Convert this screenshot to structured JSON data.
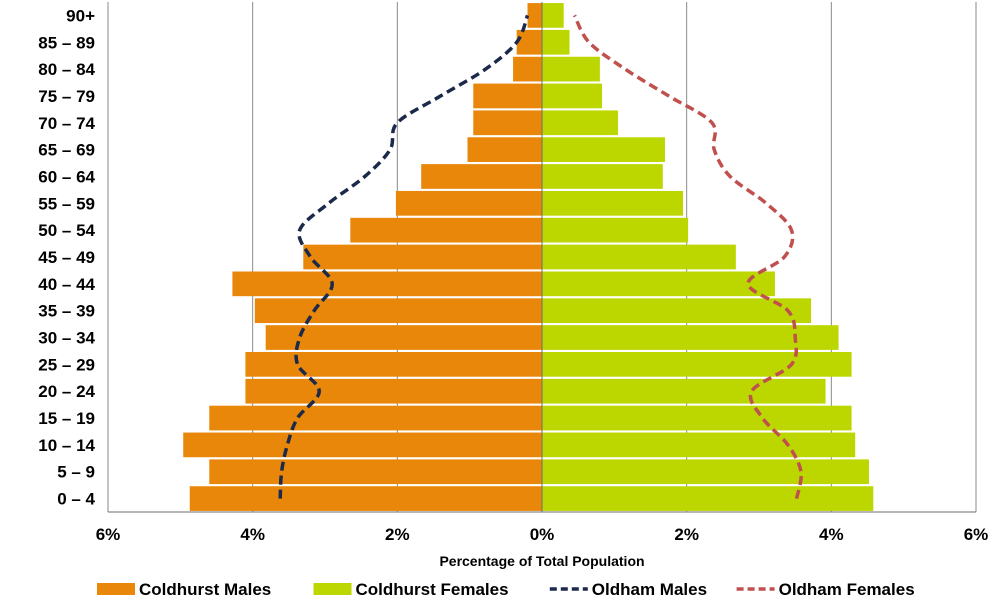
{
  "chart_data": {
    "type": "bar",
    "orientation": "horizontal",
    "title": "",
    "xlabel": "Percentage of Total Population",
    "ylabel": "",
    "xlim": [
      -6,
      6
    ],
    "x_ticks": [
      -6,
      -4,
      -2,
      0,
      2,
      4,
      6
    ],
    "x_tick_labels": [
      "6%",
      "4%",
      "2%",
      "0%",
      "2%",
      "4%",
      "6%"
    ],
    "grid": "vertical",
    "legend_position": "bottom",
    "categories": [
      "0 – 4",
      "5 – 9",
      "10 – 14",
      "15 – 19",
      "20 – 24",
      "25 – 29",
      "30 – 34",
      "35 – 39",
      "40 – 44",
      "45 – 49",
      "50 – 54",
      "55 – 59",
      "60 – 64",
      "65 – 69",
      "70 – 74",
      "75 – 79",
      "80 – 84",
      "85 – 89",
      "90+"
    ],
    "series": [
      {
        "name": "Coldhurst Males",
        "kind": "bar",
        "side": "left",
        "color": "#e8870a",
        "values": [
          4.87,
          4.6,
          4.96,
          4.6,
          4.1,
          4.1,
          3.82,
          3.97,
          4.28,
          3.3,
          2.65,
          2.02,
          1.67,
          1.03,
          0.95,
          0.95,
          0.4,
          0.35,
          0.2
        ]
      },
      {
        "name": "Coldhurst Females",
        "kind": "bar",
        "side": "right",
        "color": "#bcd600",
        "values": [
          4.58,
          4.52,
          4.33,
          4.28,
          3.92,
          4.28,
          4.1,
          3.72,
          3.22,
          2.68,
          2.02,
          1.95,
          1.67,
          1.7,
          1.05,
          0.83,
          0.8,
          0.38,
          0.3
        ]
      },
      {
        "name": "Oldham Males",
        "kind": "line",
        "side": "left",
        "color": "#1b2a4a",
        "dash": "dashed",
        "values": [
          3.62,
          3.6,
          3.52,
          3.38,
          3.08,
          3.38,
          3.35,
          3.15,
          2.9,
          3.2,
          3.35,
          2.95,
          2.45,
          2.1,
          2.0,
          1.4,
          0.78,
          0.35,
          0.2
        ]
      },
      {
        "name": "Oldham Females",
        "kind": "line",
        "side": "right",
        "color": "#c0504d",
        "dash": "dashed",
        "values": [
          3.52,
          3.58,
          3.4,
          3.05,
          2.9,
          3.45,
          3.5,
          3.4,
          2.85,
          3.35,
          3.45,
          3.1,
          2.6,
          2.38,
          2.35,
          1.75,
          1.15,
          0.65,
          0.45
        ]
      }
    ]
  }
}
